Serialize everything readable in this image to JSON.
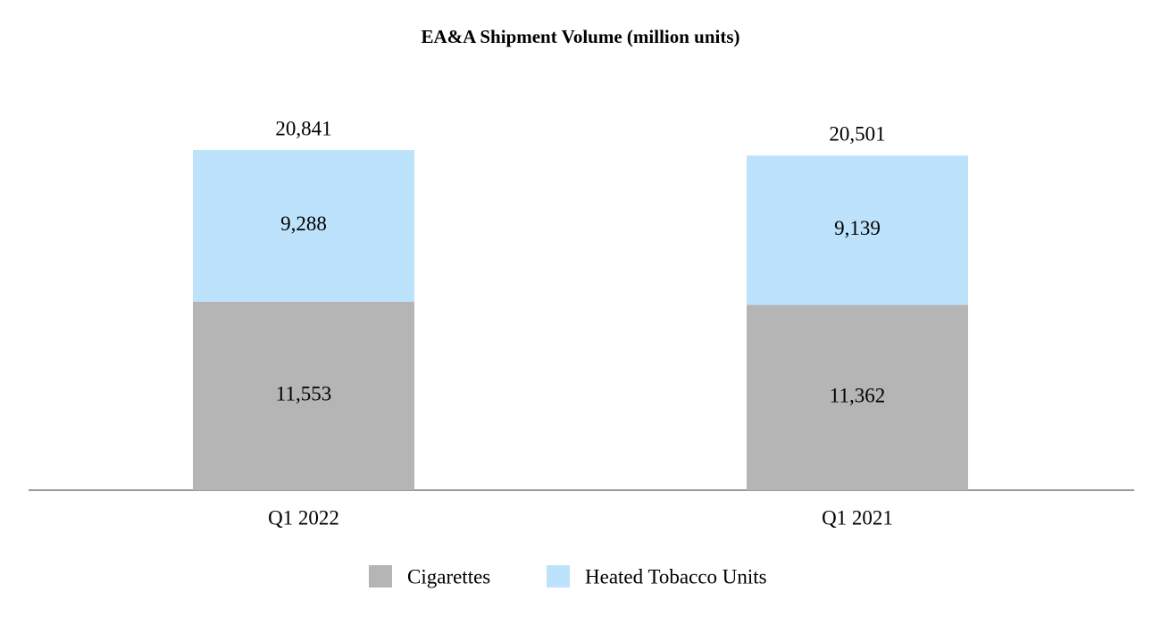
{
  "chart_data": {
    "type": "stacked_bar",
    "title": "EA&A Shipment Volume (million units)",
    "categories": [
      "Q1 2022",
      "Q1 2021"
    ],
    "series": [
      {
        "name": "Cigarettes",
        "color": "#b5b5b5",
        "values": [
          11553,
          11362
        ],
        "value_labels": [
          "11,553",
          "11,362"
        ]
      },
      {
        "name": "Heated Tobacco Units",
        "color": "#bde3fc",
        "values": [
          9288,
          9139
        ],
        "value_labels": [
          "9,288",
          "9,139"
        ]
      }
    ],
    "totals": {
      "values": [
        20841,
        20501
      ],
      "value_labels": [
        "20,841",
        "20,501"
      ]
    },
    "legend": "bottom"
  }
}
